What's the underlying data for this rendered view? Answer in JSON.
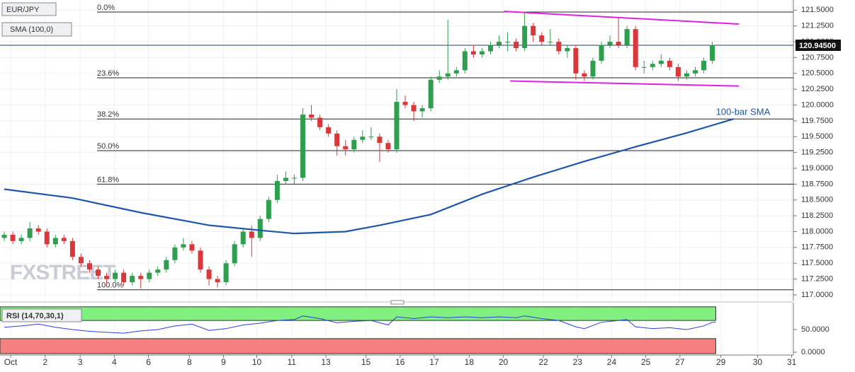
{
  "chart_data": [
    {
      "type": "candlestick",
      "title": "EUR/JPY",
      "subtitle": "SMA (100,0)",
      "watermark": "FXSTREET",
      "up_color": "#2e9e4f",
      "down_color": "#d9383a",
      "xlim": [
        -0.5,
        92.5
      ],
      "ylim": [
        116.91,
        121.66
      ],
      "grid": true,
      "yticks": [
        {
          "value": 117,
          "label": "117.0000"
        },
        {
          "value": 117.25,
          "label": "117.2500"
        },
        {
          "value": 117.5,
          "label": "117.5000"
        },
        {
          "value": 117.75,
          "label": "117.7500"
        },
        {
          "value": 118,
          "label": "118.0000"
        },
        {
          "value": 118.25,
          "label": "118.2500"
        },
        {
          "value": 118.5,
          "label": "118.5000"
        },
        {
          "value": 118.75,
          "label": "118.7500"
        },
        {
          "value": 119,
          "label": "119.0000"
        },
        {
          "value": 119.25,
          "label": "119.2500"
        },
        {
          "value": 119.5,
          "label": "119.5000"
        },
        {
          "value": 119.75,
          "label": "119.7500"
        },
        {
          "value": 120,
          "label": "120.0000"
        },
        {
          "value": 120.25,
          "label": "120.2500"
        },
        {
          "value": 120.5,
          "label": "120.5000"
        },
        {
          "value": 120.75,
          "label": "120.7500"
        },
        {
          "value": 121,
          "label": "121.0000"
        },
        {
          "value": 121.25,
          "label": "121.2500"
        },
        {
          "value": 121.5,
          "label": "121.5000"
        }
      ],
      "open": [
        117.9,
        117.95,
        117.85,
        117.9,
        118.05,
        118.0,
        117.8,
        117.9,
        117.85,
        117.6,
        117.5,
        117.4,
        117.3,
        117.25,
        117.35,
        117.2,
        117.3,
        117.25,
        117.35,
        117.4,
        117.55,
        117.75,
        117.8,
        117.7,
        117.4,
        117.25,
        117.2,
        117.5,
        117.8,
        118.0,
        117.9,
        118.2,
        118.5,
        118.8,
        118.85,
        118.85,
        119.85,
        119.8,
        119.65,
        119.55,
        119.35,
        119.3,
        119.45,
        119.5,
        119.5,
        119.4,
        119.3,
        120.05,
        120.0,
        119.9,
        119.95,
        120.4,
        120.45,
        120.5,
        120.55,
        120.85,
        120.8,
        120.85,
        120.95,
        121.0,
        121.0,
        120.9,
        121.25,
        121.1,
        121.0,
        121.0,
        120.85,
        120.9,
        120.5,
        120.45,
        120.7,
        120.95,
        121.0,
        120.95,
        121.2,
        120.6,
        120.6,
        120.65,
        120.7,
        120.6,
        120.45,
        120.5,
        120.55,
        120.7
      ],
      "high": [
        118.0,
        118.0,
        117.95,
        118.15,
        118.1,
        118.05,
        117.95,
        117.95,
        117.9,
        117.65,
        117.55,
        117.45,
        117.35,
        117.4,
        117.4,
        117.35,
        117.35,
        117.4,
        117.45,
        117.6,
        117.8,
        117.9,
        117.85,
        117.75,
        117.45,
        117.3,
        117.55,
        117.85,
        118.05,
        118.1,
        118.25,
        118.55,
        118.9,
        118.95,
        118.9,
        119.95,
        120.0,
        119.85,
        119.7,
        119.6,
        119.45,
        119.5,
        119.6,
        119.65,
        119.55,
        119.45,
        120.25,
        120.15,
        120.05,
        120.0,
        120.45,
        120.55,
        121.35,
        120.6,
        120.9,
        120.95,
        120.9,
        121.0,
        121.1,
        121.15,
        121.05,
        121.47,
        121.3,
        121.15,
        121.2,
        121.05,
        120.95,
        120.95,
        120.55,
        120.75,
        121.0,
        121.1,
        121.38,
        121.25,
        121.25,
        120.7,
        120.7,
        120.8,
        120.75,
        120.65,
        120.55,
        120.6,
        120.75,
        121.0
      ],
      "low": [
        117.85,
        117.8,
        117.8,
        117.85,
        117.95,
        117.75,
        117.75,
        117.8,
        117.55,
        117.45,
        117.35,
        117.25,
        117.15,
        117.2,
        117.15,
        117.15,
        117.1,
        117.2,
        117.3,
        117.35,
        117.5,
        117.7,
        117.65,
        117.35,
        117.15,
        117.12,
        117.15,
        117.45,
        117.75,
        117.6,
        117.85,
        118.15,
        118.45,
        118.75,
        118.75,
        118.8,
        119.75,
        119.6,
        119.5,
        119.2,
        119.2,
        119.25,
        119.4,
        119.45,
        119.1,
        119.25,
        119.25,
        119.95,
        119.75,
        119.8,
        119.9,
        120.35,
        120.4,
        120.45,
        120.5,
        120.75,
        120.75,
        120.8,
        120.9,
        120.85,
        120.85,
        120.85,
        121.0,
        120.95,
        120.95,
        120.8,
        120.75,
        120.4,
        120.38,
        120.4,
        120.65,
        120.9,
        120.9,
        120.9,
        120.55,
        120.5,
        120.55,
        120.6,
        120.55,
        120.38,
        120.4,
        120.45,
        120.5,
        120.65
      ],
      "close": [
        117.95,
        117.85,
        117.9,
        118.05,
        118.0,
        117.8,
        117.9,
        117.85,
        117.6,
        117.5,
        117.4,
        117.3,
        117.25,
        117.35,
        117.2,
        117.3,
        117.25,
        117.35,
        117.4,
        117.55,
        117.75,
        117.8,
        117.7,
        117.4,
        117.25,
        117.2,
        117.5,
        117.8,
        118.0,
        117.9,
        118.2,
        118.5,
        118.8,
        118.85,
        118.85,
        119.85,
        119.8,
        119.65,
        119.55,
        119.35,
        119.3,
        119.45,
        119.5,
        119.5,
        119.4,
        119.3,
        120.05,
        120.0,
        119.9,
        119.95,
        120.4,
        120.45,
        120.5,
        120.55,
        120.85,
        120.8,
        120.85,
        120.95,
        121.0,
        121.0,
        120.9,
        121.25,
        121.1,
        121.0,
        121.0,
        120.85,
        120.9,
        120.5,
        120.45,
        120.7,
        120.95,
        121.0,
        120.95,
        121.2,
        120.6,
        120.6,
        120.65,
        120.7,
        120.6,
        120.45,
        120.5,
        120.55,
        120.7,
        120.95
      ],
      "sma": {
        "name": "100-bar SMA",
        "color": "#1e56a8",
        "x": [
          0,
          8,
          16,
          24,
          30,
          34,
          40,
          44,
          50,
          56,
          62,
          68,
          74,
          80,
          85.5
        ],
        "values": [
          118.67,
          118.53,
          118.3,
          118.1,
          118.02,
          117.97,
          118.0,
          118.1,
          118.27,
          118.59,
          118.86,
          119.11,
          119.34,
          119.56,
          119.78
        ]
      },
      "fib_levels": [
        {
          "ratio_label": "0.0%",
          "price": 121.47
        },
        {
          "ratio_label": "23.6%",
          "price": 120.43
        },
        {
          "ratio_label": "38.2%",
          "price": 119.78
        },
        {
          "ratio_label": "50.0%",
          "price": 119.28
        },
        {
          "ratio_label": "61.8%",
          "price": 118.75
        },
        {
          "ratio_label": "100.0%",
          "price": 117.08
        }
      ],
      "channel_color": "#e020e0",
      "channel": [
        {
          "x": [
            58.6,
            86.1
          ],
          "values": [
            121.48,
            121.28
          ]
        },
        {
          "x": [
            59.3,
            86.1
          ],
          "values": [
            120.38,
            120.3
          ]
        }
      ],
      "last_price": {
        "value": 120.945,
        "label": "120.94500"
      }
    },
    {
      "type": "line",
      "title": "RSI (14,70,30,1)",
      "color": "#2a3fd6",
      "overbought": 70,
      "oversold": 30,
      "overbought_color": "#80f080",
      "oversold_color": "#f58080",
      "xlim": [
        -0.5,
        92.5
      ],
      "ylim": [
        -3,
        106
      ],
      "yticks": [
        {
          "value": 50,
          "label": "50.0000"
        },
        {
          "value": 0,
          "label": "0.0000"
        }
      ],
      "xticks": [
        {
          "value": 0.75,
          "label": "Oct"
        },
        {
          "value": 4.8,
          "label": "2"
        },
        {
          "value": 8.9,
          "label": "3"
        },
        {
          "value": 12.9,
          "label": "4"
        },
        {
          "value": 16.9,
          "label": "6"
        },
        {
          "value": 21.7,
          "label": "8"
        },
        {
          "value": 25.7,
          "label": "9"
        },
        {
          "value": 29.6,
          "label": "10"
        },
        {
          "value": 33.7,
          "label": "11"
        },
        {
          "value": 37.7,
          "label": "13"
        },
        {
          "value": 42.4,
          "label": "15"
        },
        {
          "value": 46.4,
          "label": "16"
        },
        {
          "value": 50.4,
          "label": "17"
        },
        {
          "value": 54.5,
          "label": "18"
        },
        {
          "value": 58.5,
          "label": "20"
        },
        {
          "value": 63.2,
          "label": "22"
        },
        {
          "value": 67.2,
          "label": "23"
        },
        {
          "value": 71.2,
          "label": "24"
        },
        {
          "value": 75.2,
          "label": "25"
        },
        {
          "value": 79.2,
          "label": "27"
        },
        {
          "value": 84,
          "label": "29"
        },
        {
          "value": 88.3,
          "label": "30"
        },
        {
          "value": 92.3,
          "label": "31"
        }
      ],
      "x": [
        0,
        2,
        4,
        6,
        8,
        10,
        12,
        14,
        16,
        18,
        20,
        22,
        24,
        26,
        28,
        30,
        32,
        34,
        35,
        37,
        39,
        41,
        43,
        45,
        46,
        48,
        50,
        52,
        54,
        56,
        58,
        60,
        61,
        63,
        65,
        67,
        68,
        70,
        72,
        73,
        74,
        76,
        78,
        80,
        82,
        83,
        83.4
      ],
      "values": [
        55,
        58,
        62,
        55,
        50,
        46,
        44,
        42,
        47,
        50,
        58,
        62,
        48,
        52,
        60,
        64,
        70,
        72,
        80,
        74,
        65,
        68,
        70,
        60,
        78,
        74,
        78,
        76,
        78,
        76,
        78,
        76,
        80,
        74,
        70,
        56,
        52,
        66,
        70,
        72,
        56,
        52,
        54,
        50,
        58,
        66,
        66
      ]
    }
  ]
}
